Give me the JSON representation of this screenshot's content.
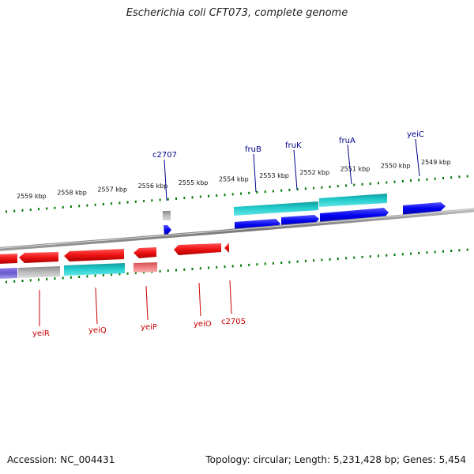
{
  "header": {
    "title": "Escherichia coli CFT073, complete genome"
  },
  "footer": {
    "accession": "Accession: NC_004431",
    "summary": "Topology: circular; Length: 5,231,428 bp; Genes: 5,454"
  },
  "colors": {
    "backbone": "#808080",
    "forward_gene": "#0000ee",
    "reverse_gene": "#ee1111",
    "forward_label": "#00008b",
    "reverse_label": "#cc0000",
    "tick": "#007700",
    "feature_cyan": "#22cccc",
    "feature_gray": "#bbbbbb",
    "feature_pink": "#f08080",
    "feature_purple": "#6a5acd"
  },
  "scale_labels": [
    "2559 kbp",
    "2558 kbp",
    "2557 kbp",
    "2556 kbp",
    "2555 kbp",
    "2554 kbp",
    "2553 kbp",
    "2552 kbp",
    "2551 kbp",
    "2550 kbp",
    "2549 kbp"
  ],
  "forward_genes": [
    "c2707",
    "fruB",
    "fruK",
    "fruA",
    "yeiC"
  ],
  "reverse_genes": [
    "yeiR",
    "yeiQ",
    "yeiP",
    "yeiO",
    "c2705"
  ]
}
